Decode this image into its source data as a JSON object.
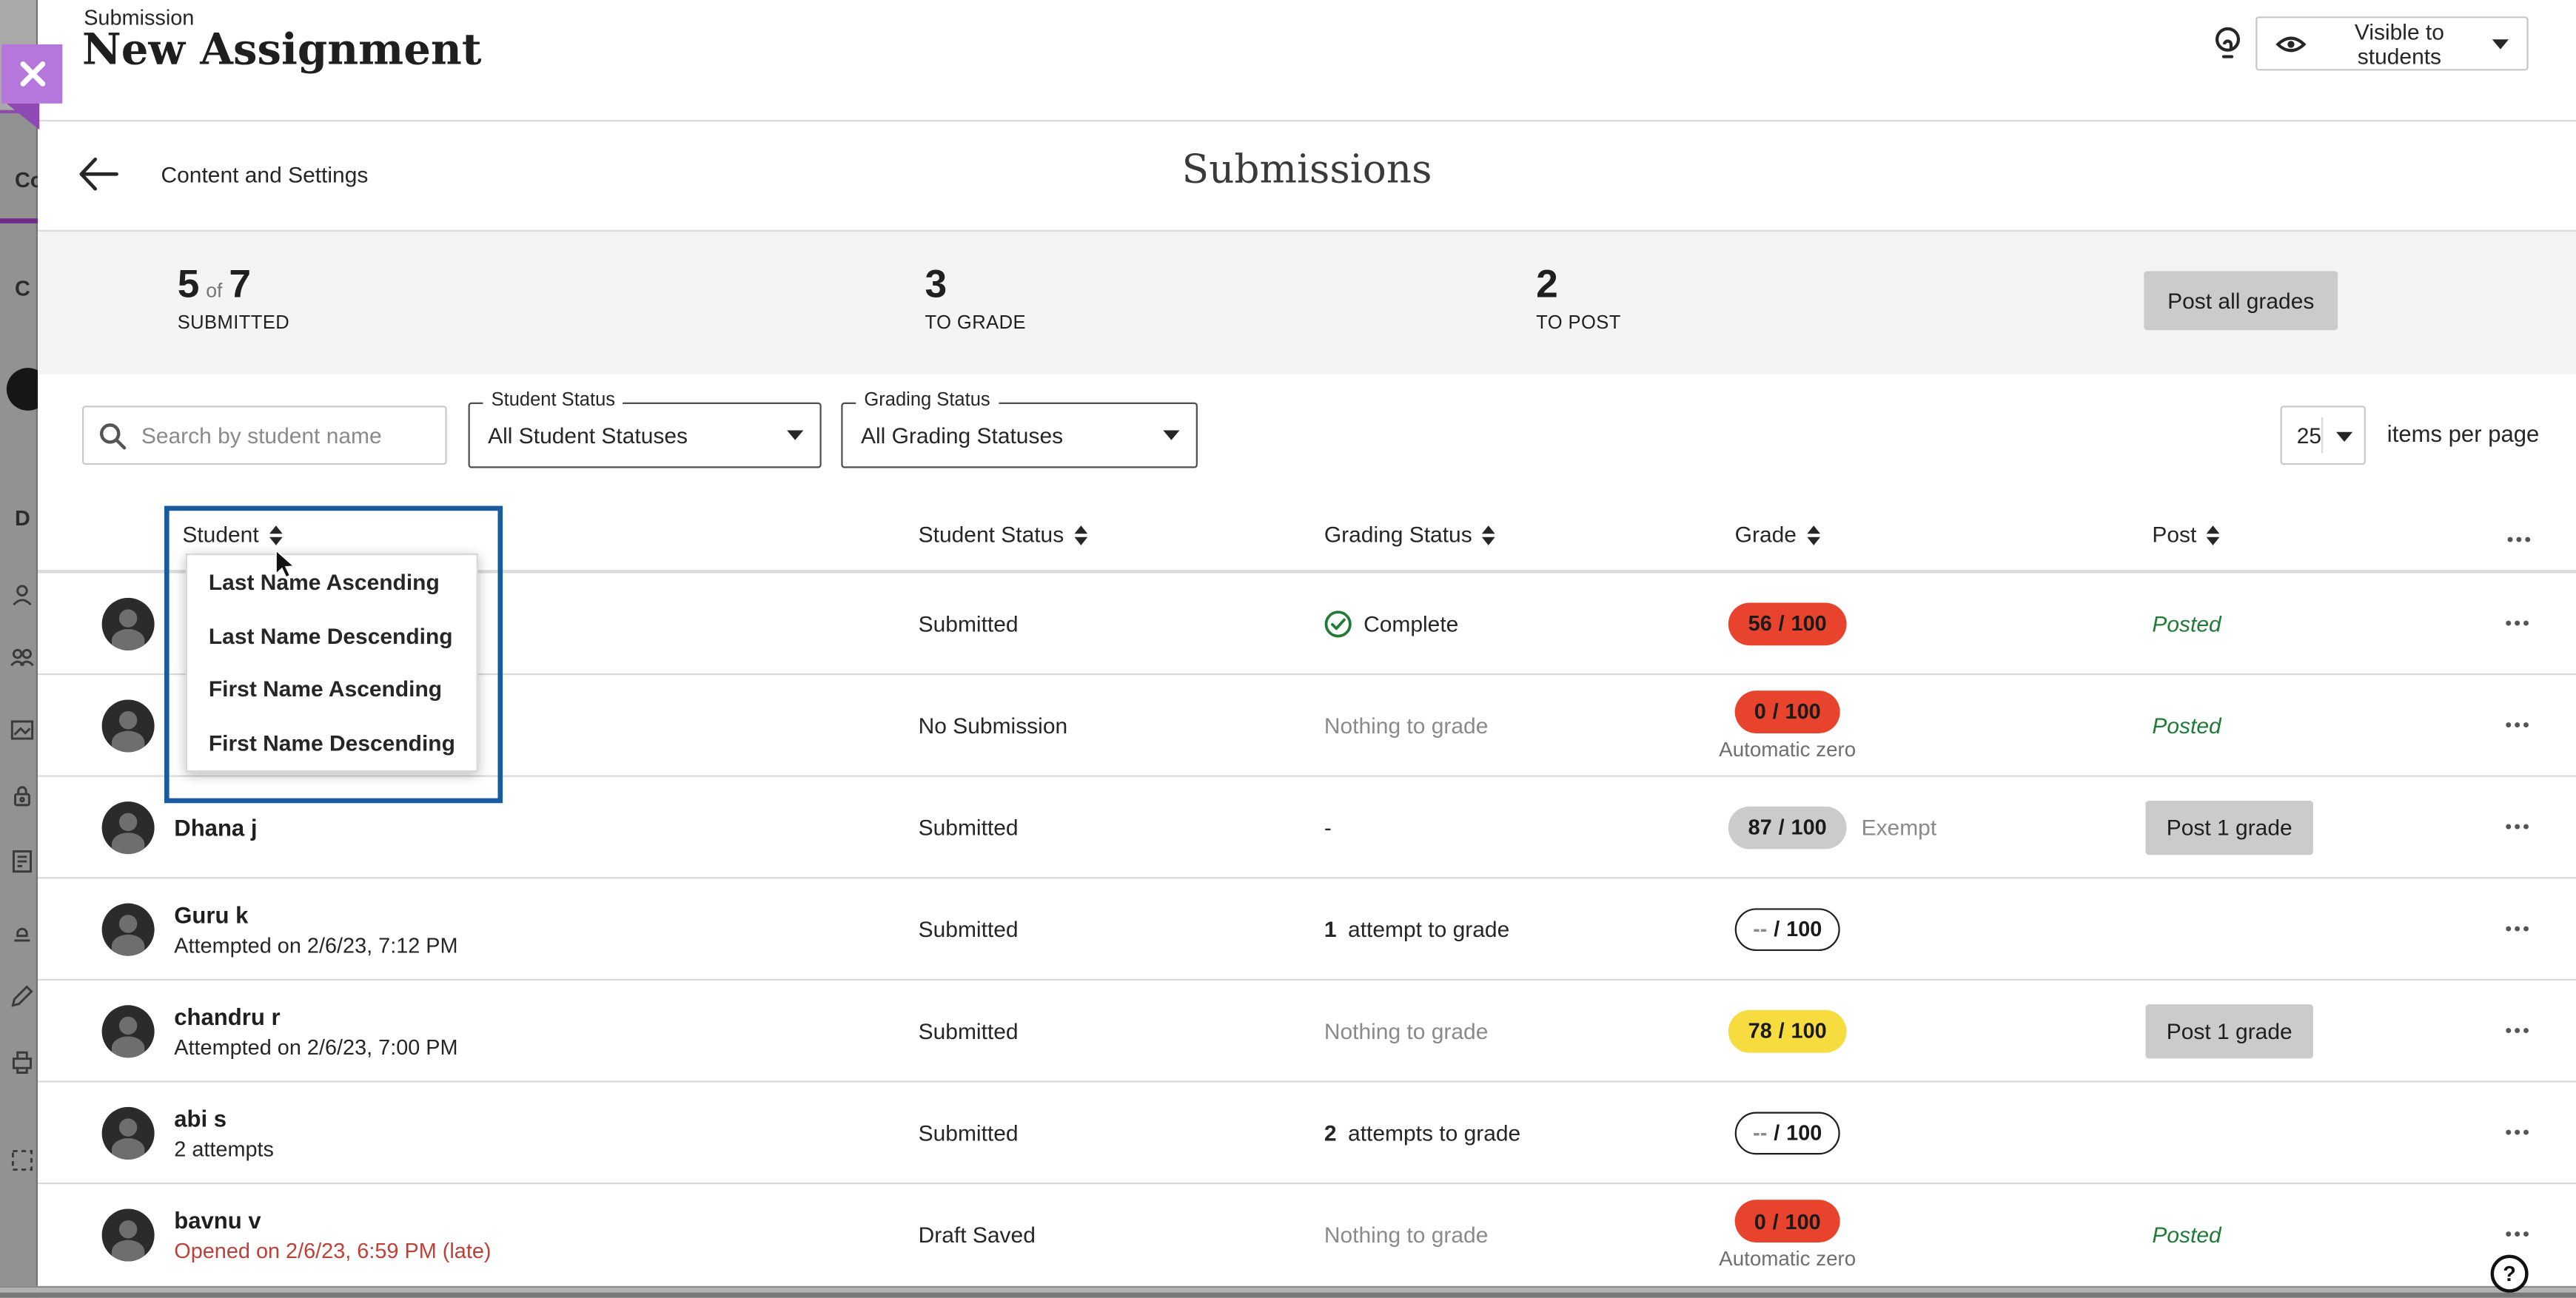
{
  "background": {
    "partial_labels": [
      "Co",
      "C",
      "D"
    ],
    "icons": [
      "person-icon",
      "group-icon",
      "image-icon",
      "lock-icon",
      "clipboard-icon",
      "stamp-icon",
      "pencil-icon",
      "printer-icon",
      "selection-icon"
    ]
  },
  "panel": {
    "eyebrow": "Submission",
    "title": "New Assignment"
  },
  "topbar": {
    "visibility_button": "Visible to students"
  },
  "subheader": {
    "back_label": "Content and Settings",
    "title": "Submissions"
  },
  "stats": {
    "submitted": {
      "value": "5",
      "connector": "of",
      "total": "7",
      "label": "SUBMITTED"
    },
    "to_grade": {
      "value": "3",
      "label": "TO GRADE"
    },
    "to_post": {
      "value": "2",
      "label": "TO POST"
    },
    "post_all_button": "Post all grades"
  },
  "filters": {
    "search_placeholder": "Search by student name",
    "student_status_label": "Student Status",
    "student_status_value": "All Student Statuses",
    "grading_status_label": "Grading Status",
    "grading_status_value": "All Grading Statuses",
    "page_size_value": "25",
    "page_size_label": "items per page"
  },
  "table": {
    "headers": [
      "Student",
      "Student Status",
      "Grading Status",
      "Grade",
      "Post"
    ],
    "overflow_icon": "•••",
    "grade_separator": "/",
    "sort_menu": [
      "Last Name Ascending",
      "Last Name Descending",
      "First Name Ascending",
      "First Name Descending"
    ],
    "rows": [
      {
        "name": "",
        "subtext": "",
        "student_status": "Submitted",
        "grading": {
          "icon": "check-circle",
          "text": "Complete"
        },
        "grade": {
          "variant": "red",
          "score": "56",
          "total": "100"
        },
        "post": {
          "type": "posted",
          "label": "Posted"
        }
      },
      {
        "name": "",
        "subtext": "",
        "student_status": "No Submission",
        "grading": {
          "text": "Nothing to grade",
          "muted": true
        },
        "grade": {
          "variant": "red",
          "score": "0",
          "total": "100",
          "note": "Automatic zero"
        },
        "post": {
          "type": "posted",
          "label": "Posted"
        }
      },
      {
        "name": "Dhana j",
        "subtext": "",
        "student_status": "Submitted",
        "grading": {
          "text": "-"
        },
        "grade": {
          "variant": "gray",
          "score": "87",
          "total": "100",
          "note_inline": "Exempt"
        },
        "post": {
          "type": "button",
          "label": "Post 1 grade"
        }
      },
      {
        "name": "Guru k",
        "subtext": "Attempted on 2/6/23, 7:12 PM",
        "student_status": "Submitted",
        "grading": {
          "bold": "1",
          "text": " attempt to grade"
        },
        "grade": {
          "variant": "outline",
          "score": "--",
          "total": "100"
        },
        "post": {
          "type": "none"
        }
      },
      {
        "name": "chandru r",
        "subtext": "Attempted on 2/6/23, 7:00 PM",
        "student_status": "Submitted",
        "grading": {
          "text": "Nothing to grade",
          "muted": true
        },
        "grade": {
          "variant": "yellow",
          "score": "78",
          "total": "100"
        },
        "post": {
          "type": "button",
          "label": "Post 1 grade"
        }
      },
      {
        "name": "abi s",
        "subtext": "2 attempts",
        "student_status": "Submitted",
        "grading": {
          "bold": "2",
          "text": " attempts to grade"
        },
        "grade": {
          "variant": "outline",
          "score": "--",
          "total": "100"
        },
        "post": {
          "type": "none"
        }
      },
      {
        "name": "bavnu v",
        "subtext": "Opened on 2/6/23, 6:59 PM (late)",
        "subtext_late": true,
        "student_status": "Draft Saved",
        "grading": {
          "text": "Nothing to grade",
          "muted": true
        },
        "grade": {
          "variant": "red",
          "score": "0",
          "total": "100",
          "note": "Automatic zero"
        },
        "post": {
          "type": "posted",
          "label": "Posted"
        }
      }
    ]
  },
  "help": {
    "glyph": "?"
  },
  "colors": {
    "accent_blue": "#1a5a9e",
    "pill_red": "#e8442d",
    "pill_yellow": "#f7dc40",
    "pill_gray": "#cbcbcb",
    "posted_green": "#217b37",
    "late_red": "#bf4038",
    "close_purple": "#b577db",
    "fold_purple": "#8e49b5"
  }
}
